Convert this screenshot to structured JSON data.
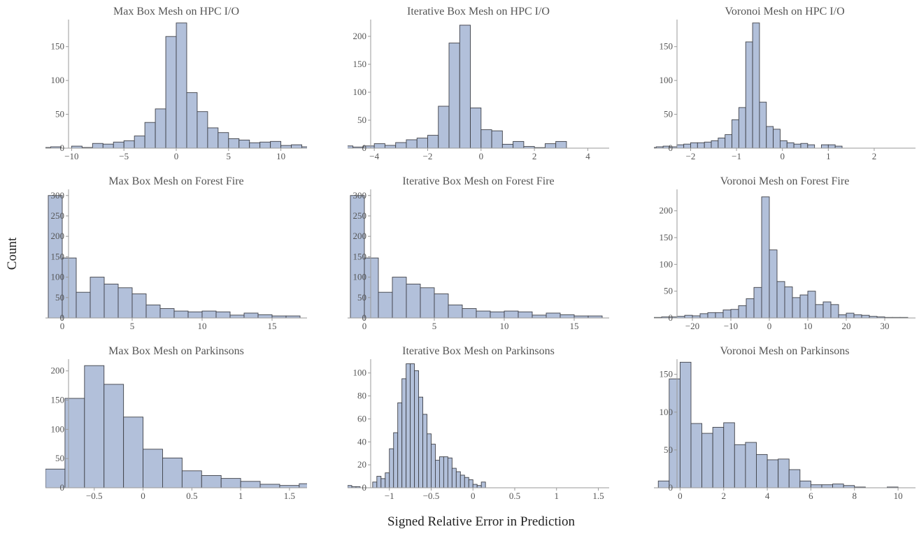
{
  "figure": {
    "xlabel": "Signed Relative Error in Prediction",
    "ylabel": "Count",
    "colors": {
      "bar_fill": "#b2c0da",
      "bar_stroke": "#3f4148",
      "axis": "#9a9a9a",
      "text": "#555555"
    }
  },
  "chart_data": [
    {
      "type": "bar",
      "title": "Max Box Mesh on HPC I/O",
      "bin_start": -13,
      "bin_width": 1,
      "values": [
        1,
        2,
        0,
        3,
        1,
        7,
        6,
        9,
        11,
        18,
        38,
        58,
        165,
        185,
        82,
        54,
        30,
        23,
        14,
        12,
        8,
        9,
        10,
        4,
        5,
        2
      ],
      "xlim": [
        -12.5,
        12.5
      ],
      "ylim": [
        0,
        190
      ],
      "xticks": [
        -10,
        -5,
        0,
        5,
        10
      ],
      "yticks": [
        0,
        50,
        100,
        150
      ]
    },
    {
      "type": "bar",
      "title": "Iterative Box Mesh on HPC I/O",
      "bin_start": -5.2,
      "bin_width": 0.4,
      "values": [
        4,
        2,
        4,
        8,
        5,
        10,
        15,
        18,
        23,
        75,
        188,
        220,
        72,
        33,
        31,
        7,
        12,
        3,
        1,
        8,
        12
      ],
      "xlim": [
        -5,
        4.8
      ],
      "ylim": [
        0,
        230
      ],
      "xticks": [
        -4,
        -2,
        0,
        2,
        4
      ],
      "yticks": [
        0,
        50,
        100,
        150,
        200
      ]
    },
    {
      "type": "bar",
      "title": "Voronoi Mesh on HPC I/O",
      "bin_start": -2.9,
      "bin_width": 0.15,
      "values": [
        1,
        2,
        3,
        2,
        5,
        6,
        8,
        8,
        9,
        11,
        15,
        20,
        42,
        60,
        157,
        185,
        68,
        32,
        28,
        11,
        8,
        6,
        7,
        5,
        0,
        5,
        5,
        3
      ],
      "xlim": [
        -2.8,
        2.9
      ],
      "ylim": [
        0,
        190
      ],
      "xticks": [
        -2,
        -1,
        0,
        1,
        2
      ],
      "yticks": [
        0,
        50,
        100,
        150
      ]
    },
    {
      "type": "bar",
      "title": "Max Box Mesh on Forest Fire",
      "bin_start": -1,
      "bin_width": 1,
      "values": [
        300,
        147,
        63,
        100,
        83,
        74,
        59,
        32,
        23,
        17,
        15,
        17,
        15,
        7,
        12,
        8,
        5,
        5
      ],
      "xlim": [
        -1.2,
        17.5
      ],
      "ylim": [
        0,
        315
      ],
      "xticks": [
        0,
        5,
        10,
        15
      ],
      "yticks": [
        0,
        50,
        100,
        150,
        200,
        250,
        300
      ]
    },
    {
      "type": "bar",
      "title": "Iterative Box Mesh on Forest Fire",
      "bin_start": -1,
      "bin_width": 1,
      "values": [
        300,
        147,
        63,
        100,
        83,
        74,
        59,
        32,
        23,
        17,
        15,
        17,
        15,
        7,
        12,
        8,
        5,
        5
      ],
      "xlim": [
        -1.2,
        17.5
      ],
      "ylim": [
        0,
        315
      ],
      "xticks": [
        0,
        5,
        10,
        15
      ],
      "yticks": [
        0,
        50,
        100,
        150,
        200,
        250,
        300
      ]
    },
    {
      "type": "bar",
      "title": "Voronoi Mesh on Forest Fire",
      "bin_start": -30,
      "bin_width": 2,
      "values": [
        1,
        2,
        2,
        3,
        5,
        4,
        8,
        10,
        10,
        15,
        16,
        23,
        36,
        57,
        226,
        127,
        68,
        58,
        38,
        43,
        50,
        25,
        30,
        25,
        6,
        9,
        6,
        5,
        3,
        2,
        1,
        1,
        1
      ],
      "xlim": [
        -30,
        38
      ],
      "ylim": [
        0,
        240
      ],
      "xticks": [
        -20,
        -10,
        0,
        10,
        20,
        30
      ],
      "yticks": [
        0,
        50,
        100,
        150,
        200
      ]
    },
    {
      "type": "bar",
      "title": "Max Box Mesh on Parkinsons",
      "bin_start": -1,
      "bin_width": 0.2,
      "values": [
        32,
        153,
        209,
        177,
        121,
        66,
        51,
        29,
        21,
        16,
        11,
        6,
        4,
        7
      ],
      "xlim": [
        -1,
        1.68
      ],
      "ylim": [
        0,
        220
      ],
      "xticks": [
        -0.5,
        0.0,
        0.5,
        1.0,
        1.5
      ],
      "yticks": [
        0,
        50,
        100,
        150,
        200
      ]
    },
    {
      "type": "bar",
      "title": "Iterative Box Mesh on Parkinsons",
      "bin_start": -1.5,
      "bin_width": 0.05,
      "values": [
        2,
        1,
        1,
        0,
        0,
        0,
        5,
        10,
        8,
        13,
        34,
        48,
        74,
        95,
        108,
        108,
        102,
        79,
        64,
        47,
        38,
        24,
        27,
        27,
        26,
        17,
        14,
        11,
        9,
        7,
        3,
        2,
        5
      ],
      "xlim": [
        -1.5,
        1.63
      ],
      "ylim": [
        0,
        112
      ],
      "xticks": [
        -1.0,
        -0.5,
        0.0,
        0.5,
        1.0,
        1.5
      ],
      "yticks": [
        0,
        20,
        40,
        60,
        80,
        100
      ]
    },
    {
      "type": "bar",
      "title": "Voronoi Mesh on Parkinsons",
      "bin_start": -1,
      "bin_width": 0.5,
      "values": [
        9,
        144,
        166,
        85,
        72,
        80,
        86,
        57,
        60,
        44,
        37,
        38,
        24,
        9,
        4,
        4,
        5,
        3,
        1,
        0,
        0,
        1
      ],
      "xlim": [
        -1.2,
        10.8
      ],
      "ylim": [
        0,
        170
      ],
      "xticks": [
        0,
        2,
        4,
        6,
        8,
        10
      ],
      "yticks": [
        0,
        50,
        100,
        150
      ]
    }
  ]
}
